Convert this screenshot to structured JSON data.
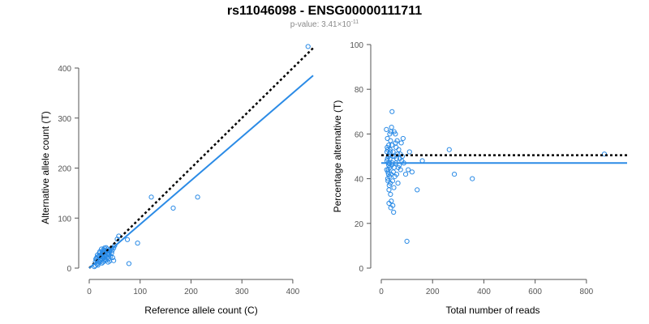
{
  "header": {
    "title": "rs11046098 - ENSG00000111711",
    "pvalue_label": "p-value: 3.41",
    "pvalue_base": "×10",
    "pvalue_exp": "-11"
  },
  "colors": {
    "points": "#2b8be6",
    "fit_line": "#2b8be6",
    "reference_line": "#000000",
    "axis": "#555555"
  },
  "chart_data": [
    {
      "type": "scatter",
      "xlabel": "Reference allele count (C)",
      "ylabel": "Alternative allele count (T)",
      "xlim": [
        0,
        440
      ],
      "ylim": [
        0,
        400
      ],
      "xticks": [
        0,
        100,
        200,
        300,
        400
      ],
      "yticks": [
        0,
        100,
        200,
        300,
        400
      ],
      "grid": false,
      "points": [
        [
          430,
          443
        ],
        [
          122,
          142
        ],
        [
          213,
          142
        ],
        [
          165,
          120
        ],
        [
          95,
          50
        ],
        [
          78,
          9
        ],
        [
          75,
          57
        ],
        [
          58,
          64
        ],
        [
          55,
          58
        ],
        [
          50,
          45
        ],
        [
          48,
          40
        ],
        [
          40,
          33
        ],
        [
          38,
          28
        ],
        [
          45,
          35
        ],
        [
          35,
          30
        ],
        [
          30,
          25
        ],
        [
          28,
          20
        ],
        [
          25,
          18
        ],
        [
          22,
          15
        ],
        [
          20,
          12
        ],
        [
          18,
          10
        ],
        [
          15,
          8
        ],
        [
          12,
          5
        ],
        [
          10,
          3
        ],
        [
          14,
          20
        ],
        [
          16,
          22
        ],
        [
          20,
          25
        ],
        [
          24,
          28
        ],
        [
          26,
          33
        ],
        [
          28,
          37
        ],
        [
          30,
          40
        ],
        [
          33,
          41
        ],
        [
          36,
          38
        ],
        [
          18,
          14
        ],
        [
          22,
          20
        ],
        [
          26,
          22
        ],
        [
          30,
          30
        ],
        [
          32,
          26
        ],
        [
          35,
          22
        ],
        [
          38,
          18
        ],
        [
          40,
          14
        ],
        [
          42,
          24
        ],
        [
          44,
          30
        ],
        [
          46,
          21
        ],
        [
          20,
          30
        ],
        [
          22,
          17
        ],
        [
          28,
          30
        ],
        [
          34,
          34
        ],
        [
          15,
          15
        ],
        [
          12,
          12
        ],
        [
          17,
          6
        ],
        [
          25,
          10
        ],
        [
          29,
          14
        ],
        [
          31,
          18
        ],
        [
          37,
          12
        ],
        [
          39,
          27
        ],
        [
          41,
          36
        ],
        [
          19,
          24
        ],
        [
          23,
          26
        ],
        [
          27,
          12
        ],
        [
          33,
          16
        ],
        [
          36,
          26
        ],
        [
          48,
          15
        ],
        [
          30,
          34
        ],
        [
          24,
          38
        ],
        [
          21,
          33
        ],
        [
          13,
          18
        ],
        [
          16,
          26
        ],
        [
          45,
          40
        ]
      ],
      "reference_line": {
        "from": [
          0,
          0
        ],
        "to": [
          440,
          440
        ]
      },
      "fit_line": {
        "from": [
          0,
          0
        ],
        "to": [
          440,
          385
        ]
      }
    },
    {
      "type": "scatter",
      "xlabel": "Total number of reads",
      "ylabel": "Percentage alternative (T)",
      "xlim": [
        0,
        870
      ],
      "ylim": [
        0,
        100
      ],
      "xticks": [
        0,
        200,
        400,
        600,
        800
      ],
      "yticks": [
        0,
        20,
        40,
        60,
        80,
        100
      ],
      "grid": false,
      "points": [
        [
          870,
          51
        ],
        [
          265,
          53
        ],
        [
          285,
          42
        ],
        [
          355,
          40
        ],
        [
          140,
          35
        ],
        [
          100,
          12
        ],
        [
          160,
          48
        ],
        [
          120,
          43
        ],
        [
          110,
          52
        ],
        [
          95,
          42
        ],
        [
          105,
          44
        ],
        [
          85,
          58
        ],
        [
          80,
          48
        ],
        [
          75,
          44
        ],
        [
          70,
          46
        ],
        [
          65,
          38
        ],
        [
          60,
          42
        ],
        [
          55,
          60
        ],
        [
          50,
          45
        ],
        [
          48,
          25
        ],
        [
          45,
          28
        ],
        [
          42,
          70
        ],
        [
          40,
          63
        ],
        [
          38,
          61
        ],
        [
          36,
          57
        ],
        [
          35,
          52
        ],
        [
          34,
          49
        ],
        [
          33,
          45
        ],
        [
          32,
          41
        ],
        [
          31,
          37
        ],
        [
          30,
          35
        ],
        [
          29,
          55
        ],
        [
          28,
          50
        ],
        [
          27,
          47
        ],
        [
          26,
          43
        ],
        [
          25,
          40
        ],
        [
          24,
          58
        ],
        [
          23,
          54
        ],
        [
          22,
          48
        ],
        [
          21,
          44
        ],
        [
          20,
          62
        ],
        [
          30,
          29
        ],
        [
          36,
          33
        ],
        [
          44,
          39
        ],
        [
          52,
          50
        ],
        [
          58,
          54
        ],
        [
          62,
          57
        ],
        [
          68,
          53
        ],
        [
          72,
          49
        ],
        [
          78,
          56
        ],
        [
          88,
          47
        ],
        [
          46,
          52
        ],
        [
          40,
          46
        ],
        [
          38,
          42
        ],
        [
          35,
          38
        ],
        [
          33,
          60
        ],
        [
          31,
          51
        ],
        [
          29,
          46
        ],
        [
          27,
          44
        ],
        [
          26,
          39
        ],
        [
          25,
          53
        ],
        [
          24,
          49
        ],
        [
          41,
          55
        ],
        [
          43,
          47
        ],
        [
          47,
          43
        ],
        [
          49,
          36
        ],
        [
          53,
          41
        ],
        [
          57,
          47
        ],
        [
          64,
          51
        ],
        [
          66,
          45
        ],
        [
          39,
          30
        ],
        [
          37,
          27
        ],
        [
          50,
          61
        ],
        [
          56,
          56
        ],
        [
          34,
          53
        ],
        [
          32,
          47
        ],
        [
          28,
          42
        ],
        [
          22,
          52
        ],
        [
          45,
          50
        ],
        [
          60,
          49
        ],
        [
          74,
          51
        ],
        [
          82,
          50
        ]
      ],
      "reference_line": {
        "y": 50.5
      },
      "fit_line": {
        "y": 47
      }
    }
  ]
}
